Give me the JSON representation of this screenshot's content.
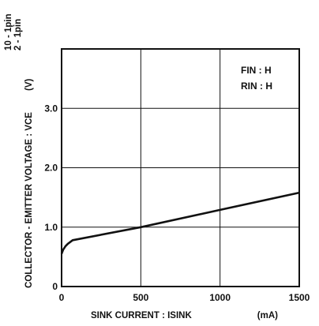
{
  "chart_data": {
    "type": "line",
    "title": "",
    "xlabel": "SINK CURRENT : ISINK",
    "xunit": "(mA)",
    "ylabel": "COLLECTOR - EMITTER VOLTAGE : VCE",
    "yunit": "(V)",
    "yunit_pins": [
      "10 - 1pin",
      "2 - 1pin"
    ],
    "xlim": [
      0,
      1500
    ],
    "ylim": [
      0,
      4.0
    ],
    "x_ticks": [
      0,
      500,
      1000,
      1500
    ],
    "x_tick_labels": [
      "0",
      "500",
      "1000",
      "1500"
    ],
    "y_ticks": [
      0,
      1.0,
      2.0,
      3.0
    ],
    "y_tick_labels": [
      "0",
      "1.0",
      "2.0",
      "3.0"
    ],
    "grid": true,
    "annotations": [
      "FIN : H",
      "RIN : H"
    ],
    "series": [
      {
        "x": [
          0,
          10,
          25,
          40,
          55,
          70,
          500,
          1000,
          1500
        ],
        "y": [
          0.55,
          0.62,
          0.68,
          0.72,
          0.75,
          0.78,
          1.0,
          1.29,
          1.58
        ]
      }
    ]
  }
}
